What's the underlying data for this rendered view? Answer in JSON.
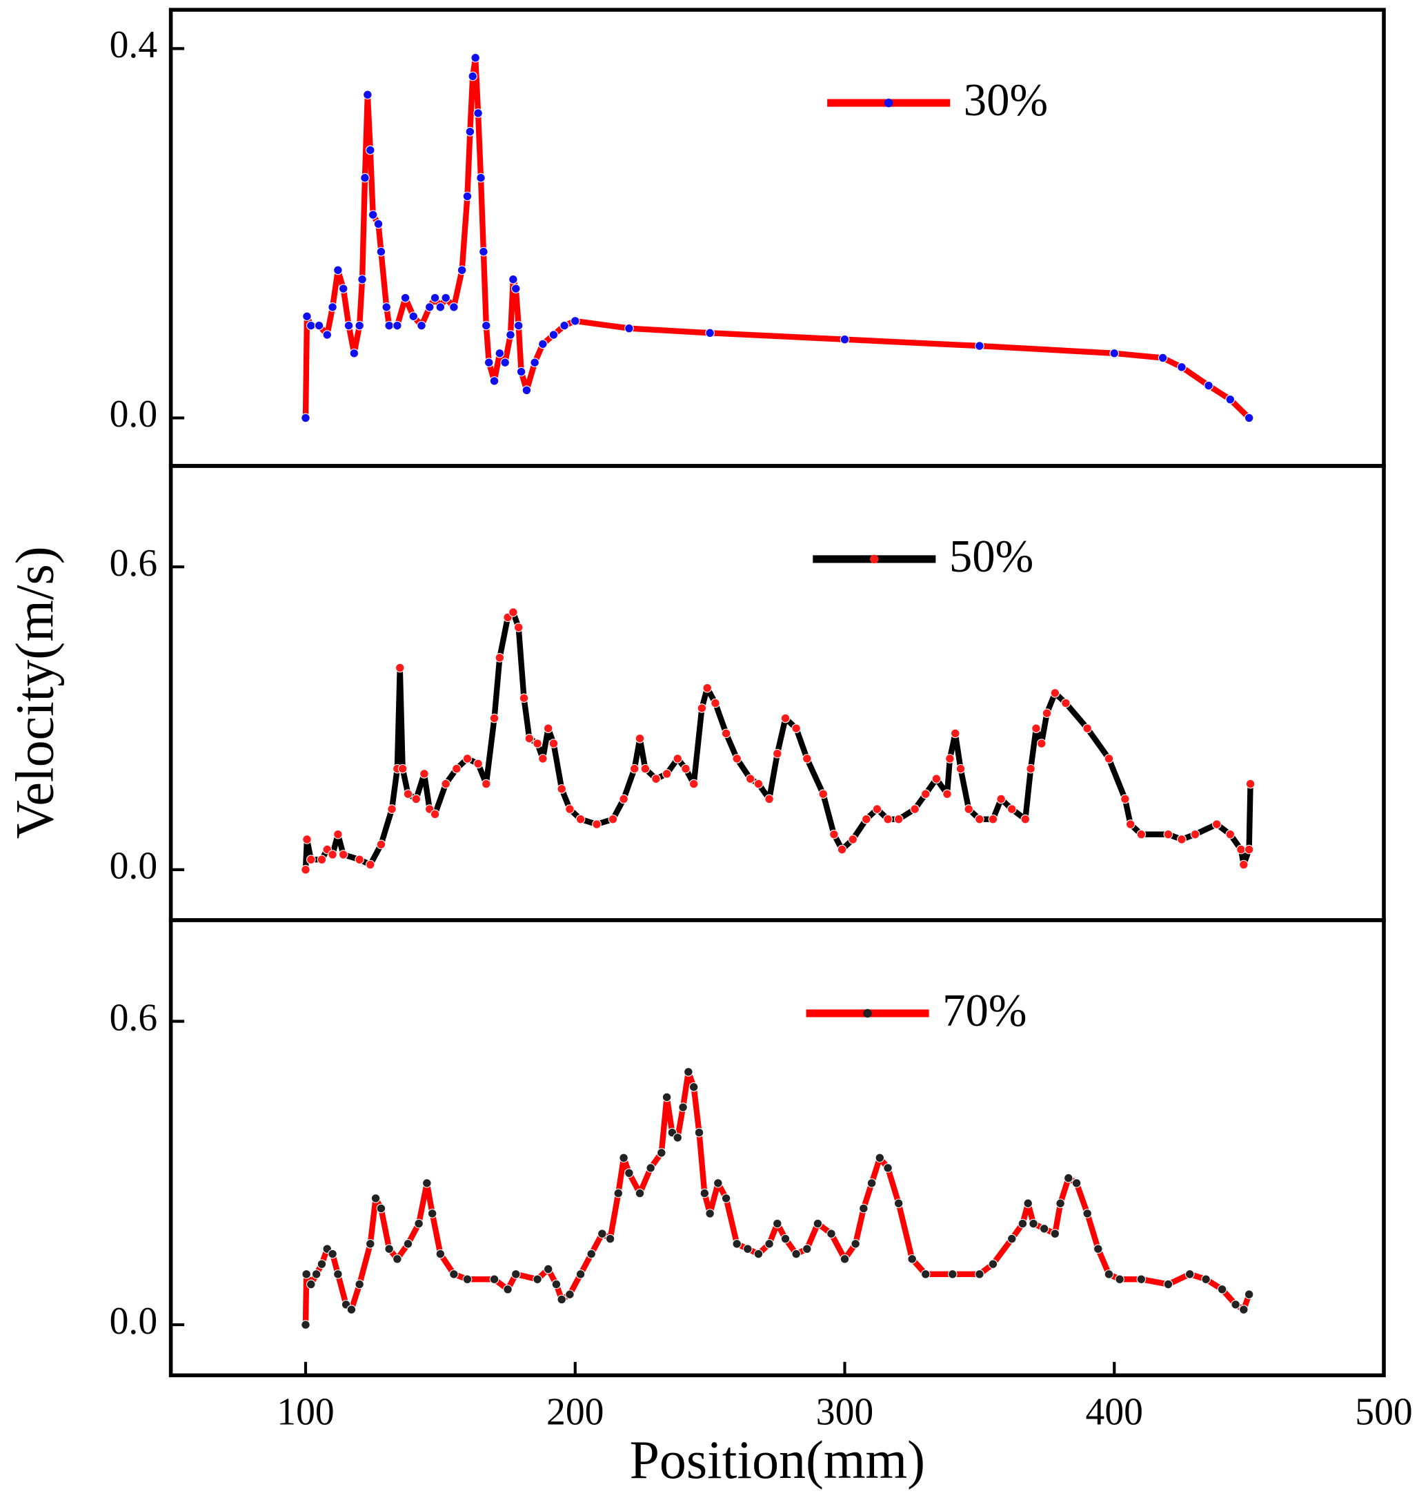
{
  "chart_data": [
    {
      "type": "line",
      "xlim": [
        50,
        500
      ],
      "ylim": [
        -0.052,
        0.442
      ],
      "yticks": [
        {
          "value": 0,
          "label": "0.0"
        },
        0.4
      ],
      "x": [
        100,
        100.5,
        102,
        105,
        108,
        110,
        112,
        114,
        116,
        118,
        120,
        121,
        122,
        123,
        124,
        125,
        127,
        128,
        130,
        131,
        134,
        137,
        140,
        143,
        146,
        148,
        150,
        152,
        155,
        158,
        160,
        161,
        162,
        163,
        164,
        165,
        166,
        167,
        168,
        170,
        172,
        174,
        176,
        177,
        178,
        179,
        180,
        182,
        185,
        188,
        192,
        196,
        200,
        220,
        250,
        300,
        350,
        400,
        418,
        425,
        435,
        443,
        450
      ],
      "series": [
        {
          "name": "30%",
          "color": "#ff0000",
          "marker_color": "#1010ee",
          "values": [
            0,
            0.11,
            0.1,
            0.1,
            0.09,
            0.12,
            0.16,
            0.14,
            0.1,
            0.07,
            0.1,
            0.15,
            0.26,
            0.35,
            0.29,
            0.22,
            0.21,
            0.18,
            0.12,
            0.1,
            0.1,
            0.13,
            0.11,
            0.1,
            0.12,
            0.13,
            0.12,
            0.13,
            0.12,
            0.16,
            0.24,
            0.31,
            0.37,
            0.39,
            0.33,
            0.26,
            0.18,
            0.1,
            0.06,
            0.04,
            0.07,
            0.06,
            0.09,
            0.15,
            0.14,
            0.1,
            0.05,
            0.03,
            0.06,
            0.08,
            0.09,
            0.1,
            0.105,
            0.097,
            0.092,
            0.085,
            0.078,
            0.07,
            0.065,
            0.055,
            0.035,
            0.02,
            0
          ]
        }
      ]
    },
    {
      "type": "line",
      "xlim": [
        50,
        500
      ],
      "ylim": [
        -0.1,
        0.8
      ],
      "yticks": [
        {
          "value": 0,
          "label": "0.0"
        },
        0.6
      ],
      "ylabel": "Velocity(m/s)",
      "x": [
        100,
        100.5,
        102,
        106,
        108,
        110,
        112,
        114,
        120,
        124,
        128,
        132,
        134,
        135,
        136,
        138,
        141,
        144,
        146,
        148,
        152,
        156,
        160,
        164,
        167,
        170,
        172,
        175,
        177,
        179,
        181,
        183,
        186,
        188,
        190,
        192,
        195,
        198,
        202,
        208,
        214,
        218,
        222,
        224,
        226,
        230,
        234,
        238,
        241,
        244,
        247,
        249,
        252,
        256,
        260,
        265,
        268,
        272,
        275,
        278,
        282,
        286,
        292,
        296,
        299,
        303,
        308,
        312,
        316,
        320,
        326,
        330,
        334,
        338,
        339,
        341,
        343,
        346,
        350,
        355,
        358,
        362,
        367,
        369,
        371,
        373,
        375,
        378,
        382,
        390,
        398,
        404,
        406,
        410,
        420,
        425,
        430,
        438,
        443,
        447,
        448,
        450,
        450.5
      ],
      "series": [
        {
          "name": "50%",
          "color": "#000000",
          "marker_color": "#ff1a1a",
          "values": [
            0,
            0.06,
            0.02,
            0.02,
            0.04,
            0.03,
            0.07,
            0.03,
            0.02,
            0.01,
            0.05,
            0.12,
            0.2,
            0.4,
            0.2,
            0.15,
            0.14,
            0.19,
            0.12,
            0.11,
            0.17,
            0.2,
            0.22,
            0.21,
            0.17,
            0.3,
            0.42,
            0.5,
            0.51,
            0.48,
            0.34,
            0.26,
            0.25,
            0.22,
            0.28,
            0.25,
            0.16,
            0.12,
            0.1,
            0.09,
            0.1,
            0.14,
            0.2,
            0.26,
            0.2,
            0.18,
            0.19,
            0.22,
            0.2,
            0.17,
            0.32,
            0.36,
            0.33,
            0.27,
            0.22,
            0.18,
            0.17,
            0.14,
            0.23,
            0.3,
            0.28,
            0.22,
            0.15,
            0.07,
            0.04,
            0.06,
            0.1,
            0.12,
            0.1,
            0.1,
            0.12,
            0.15,
            0.18,
            0.15,
            0.22,
            0.27,
            0.2,
            0.12,
            0.1,
            0.1,
            0.14,
            0.12,
            0.1,
            0.2,
            0.28,
            0.25,
            0.31,
            0.35,
            0.33,
            0.28,
            0.22,
            0.14,
            0.09,
            0.07,
            0.07,
            0.06,
            0.07,
            0.09,
            0.07,
            0.04,
            0.01,
            0.04,
            0.17
          ]
        }
      ]
    },
    {
      "type": "line",
      "xlim": [
        50,
        500
      ],
      "xticks": [
        100,
        200,
        300,
        400,
        500
      ],
      "ylim": [
        -0.1,
        0.8
      ],
      "yticks": [
        {
          "value": 0,
          "label": "0.0"
        },
        0.6
      ],
      "xlabel": "Position(mm)",
      "x": [
        100,
        100.3,
        102,
        104,
        106,
        108,
        110,
        112,
        115,
        117,
        120,
        124,
        126,
        128,
        131,
        134,
        138,
        142,
        145,
        147,
        150,
        155,
        160,
        170,
        175,
        178,
        186,
        190,
        193,
        195,
        198,
        202,
        206,
        210,
        213,
        216,
        218,
        220,
        224,
        228,
        232,
        234,
        236,
        238,
        240,
        242,
        244,
        246,
        248,
        250,
        253,
        256,
        260,
        264,
        268,
        272,
        275,
        278,
        282,
        286,
        290,
        295,
        300,
        304,
        307,
        310,
        313,
        316,
        320,
        325,
        330,
        340,
        350,
        355,
        362,
        366,
        368,
        370,
        374,
        378,
        380,
        383,
        386,
        390,
        394,
        398,
        402,
        410,
        420,
        428,
        434,
        440,
        445,
        448,
        450
      ],
      "series": [
        {
          "name": "70%",
          "color": "#ff0000",
          "marker_color": "#222222",
          "values": [
            0,
            0.1,
            0.08,
            0.1,
            0.12,
            0.15,
            0.14,
            0.1,
            0.04,
            0.03,
            0.08,
            0.16,
            0.25,
            0.23,
            0.15,
            0.13,
            0.16,
            0.2,
            0.28,
            0.22,
            0.14,
            0.1,
            0.09,
            0.09,
            0.07,
            0.1,
            0.09,
            0.11,
            0.08,
            0.05,
            0.06,
            0.1,
            0.14,
            0.18,
            0.17,
            0.26,
            0.33,
            0.3,
            0.26,
            0.31,
            0.34,
            0.45,
            0.38,
            0.37,
            0.43,
            0.5,
            0.47,
            0.38,
            0.26,
            0.22,
            0.28,
            0.25,
            0.16,
            0.15,
            0.14,
            0.16,
            0.2,
            0.17,
            0.14,
            0.15,
            0.2,
            0.18,
            0.13,
            0.16,
            0.23,
            0.28,
            0.33,
            0.31,
            0.24,
            0.13,
            0.1,
            0.1,
            0.1,
            0.12,
            0.17,
            0.2,
            0.24,
            0.2,
            0.19,
            0.18,
            0.24,
            0.29,
            0.28,
            0.22,
            0.15,
            0.1,
            0.09,
            0.09,
            0.08,
            0.1,
            0.09,
            0.07,
            0.04,
            0.03,
            0.06
          ]
        }
      ]
    }
  ]
}
